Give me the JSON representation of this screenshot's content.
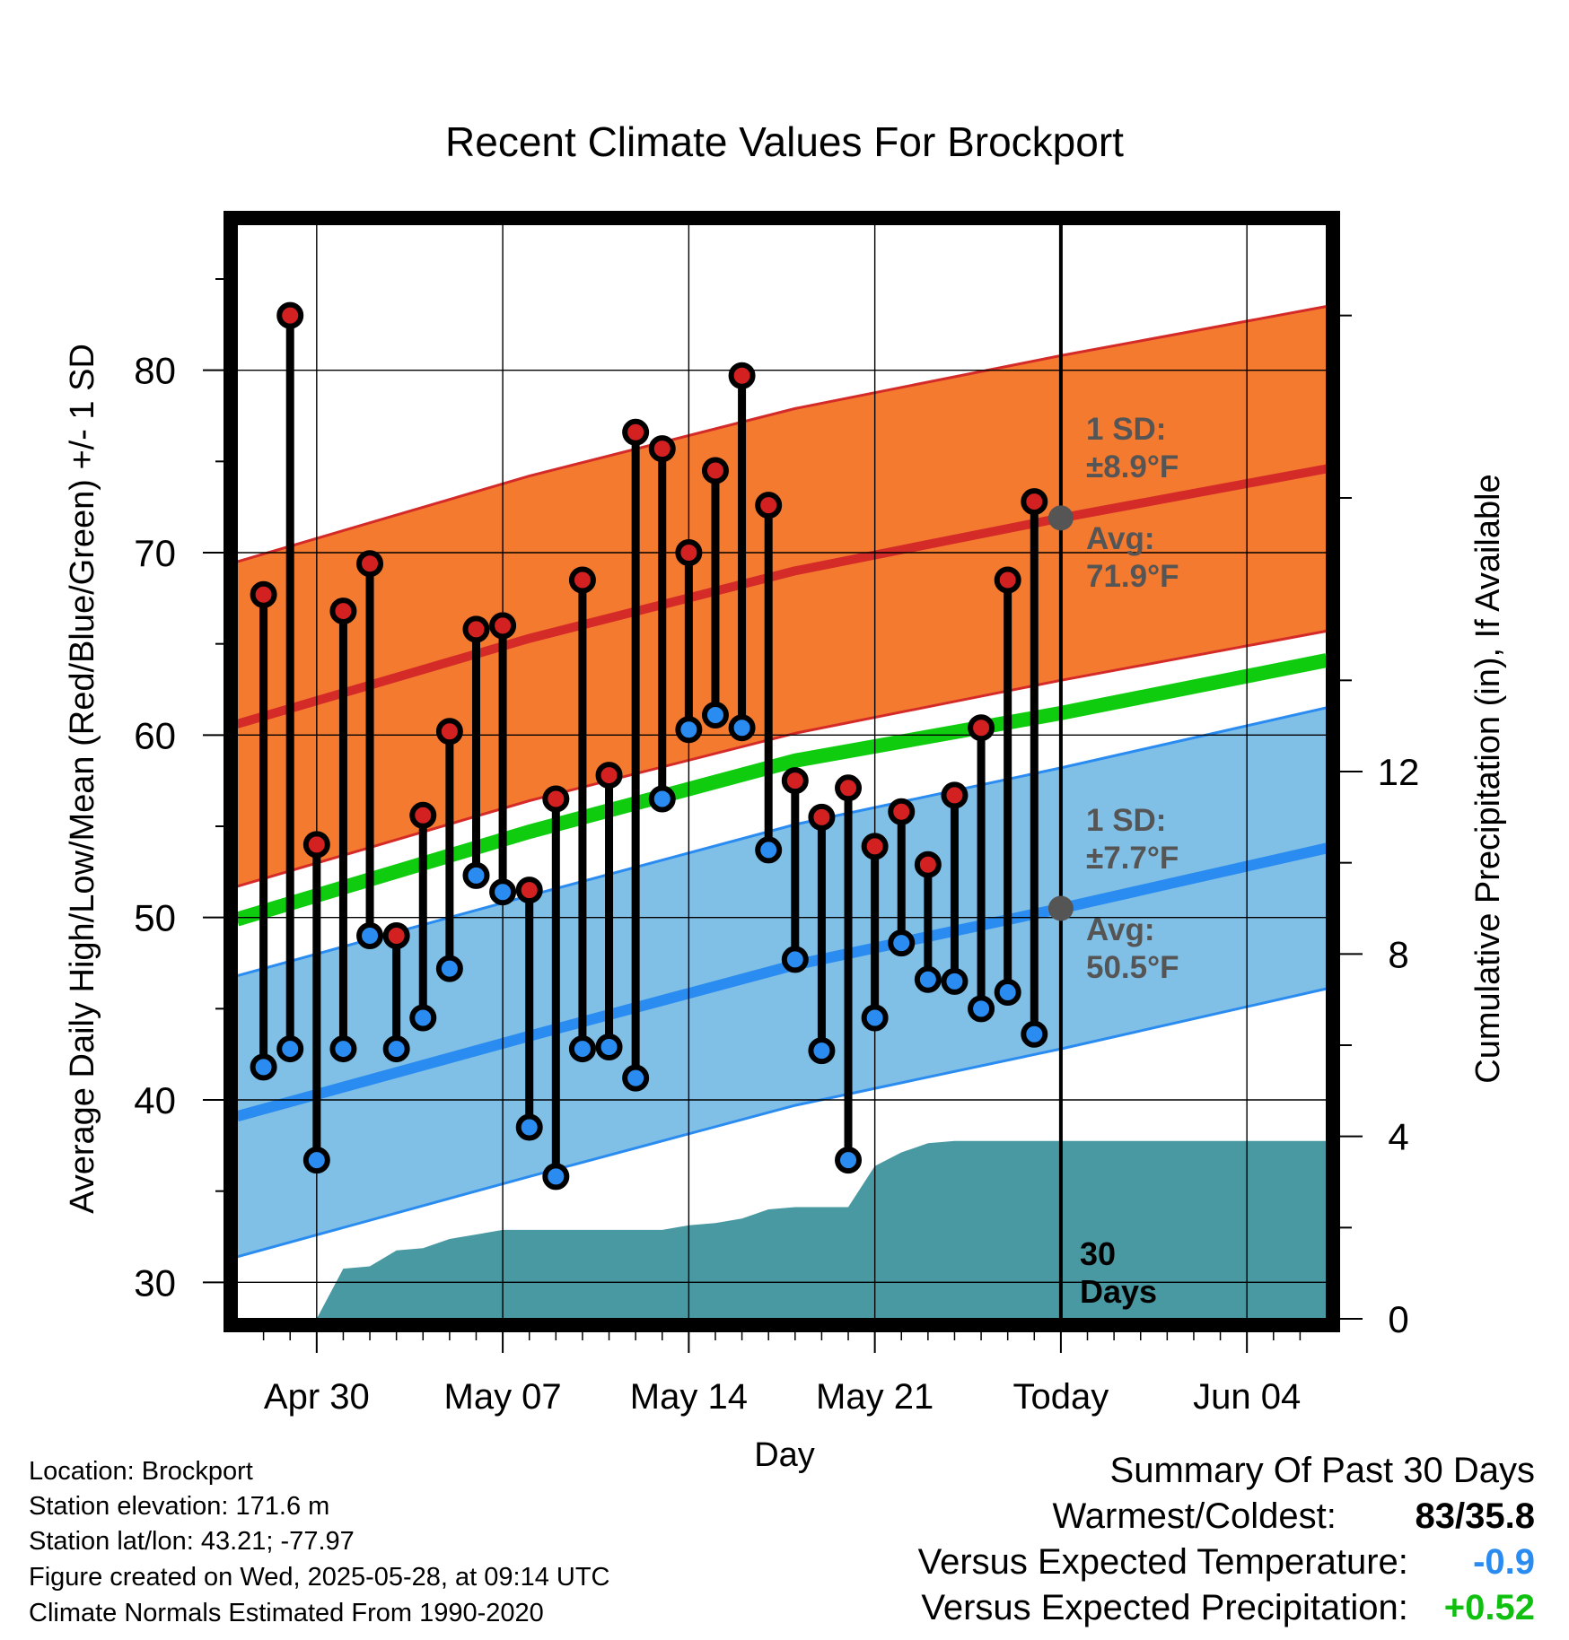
{
  "chart_data": {
    "type": "line",
    "title": "Recent Climate Values For Brockport",
    "xlabel": "Day",
    "ylabel": "Average Daily High/Low/Mean (Red/Blue/Green) +/- 1 SD",
    "y2label": "Cumulative Precipitation (in), If Available",
    "ylim": [
      28,
      88
    ],
    "y2lim": [
      0,
      24
    ],
    "yticks": [
      30,
      40,
      50,
      60,
      70,
      80
    ],
    "y2ticks": [
      0,
      4,
      8,
      12
    ],
    "xticks": [
      {
        "date": "2025-04-30",
        "label": "Apr 30"
      },
      {
        "date": "2025-05-07",
        "label": "May 07"
      },
      {
        "date": "2025-05-14",
        "label": "May 14"
      },
      {
        "date": "2025-05-21",
        "label": "May 21"
      },
      {
        "date": "2025-05-28",
        "label": "Today"
      },
      {
        "date": "2025-06-04",
        "label": "Jun 04"
      }
    ],
    "xlim": [
      "2025-04-27",
      "2025-06-07"
    ],
    "grid": true,
    "daily": {
      "dates": [
        "2025-04-28",
        "2025-04-29",
        "2025-04-30",
        "2025-05-01",
        "2025-05-02",
        "2025-05-03",
        "2025-05-04",
        "2025-05-05",
        "2025-05-06",
        "2025-05-07",
        "2025-05-08",
        "2025-05-09",
        "2025-05-10",
        "2025-05-11",
        "2025-05-12",
        "2025-05-13",
        "2025-05-14",
        "2025-05-15",
        "2025-05-16",
        "2025-05-17",
        "2025-05-18",
        "2025-05-19",
        "2025-05-20",
        "2025-05-21",
        "2025-05-22",
        "2025-05-23",
        "2025-05-24",
        "2025-05-25",
        "2025-05-26",
        "2025-05-27"
      ],
      "high": [
        67.7,
        83,
        54,
        66.8,
        69.4,
        49,
        55.6,
        60.2,
        65.8,
        66,
        51.5,
        56.5,
        68.5,
        57.8,
        76.6,
        75.7,
        70,
        74.5,
        79.7,
        72.6,
        57.5,
        55.5,
        57.1,
        53.9,
        55.8,
        52.9,
        56.7,
        60.4,
        68.5,
        72.8
      ],
      "low": [
        41.8,
        42.8,
        36.7,
        42.8,
        49,
        42.8,
        44.5,
        47.2,
        52.3,
        51.4,
        38.5,
        35.8,
        42.8,
        42.9,
        41.2,
        56.5,
        60.3,
        61.1,
        60.4,
        53.7,
        47.7,
        42.7,
        36.7,
        44.5,
        48.6,
        46.6,
        46.5,
        45,
        45.9,
        43.6
      ]
    },
    "normals": {
      "dates": [
        "2025-04-27",
        "2025-05-08",
        "2025-05-18",
        "2025-05-28",
        "2025-06-07"
      ],
      "avg_high": [
        60.6,
        65.3,
        69.0,
        71.9,
        74.6
      ],
      "high_sd": 8.9,
      "avg_low": [
        39.1,
        43.5,
        47.4,
        50.5,
        53.8
      ],
      "low_sd": 7.7,
      "avg_mean": [
        49.9,
        54.7,
        58.6,
        61.2,
        64.1
      ]
    },
    "precip": {
      "dates": [
        "2025-04-30",
        "2025-05-01",
        "2025-05-02",
        "2025-05-03",
        "2025-05-04",
        "2025-05-05",
        "2025-05-06",
        "2025-05-07",
        "2025-05-08",
        "2025-05-09",
        "2025-05-10",
        "2025-05-11",
        "2025-05-12",
        "2025-05-13",
        "2025-05-14",
        "2025-05-15",
        "2025-05-16",
        "2025-05-17",
        "2025-05-18",
        "2025-05-19",
        "2025-05-20",
        "2025-05-21",
        "2025-05-22",
        "2025-05-23",
        "2025-05-24",
        "2025-05-25",
        "2025-06-07"
      ],
      "cumulative": [
        0,
        1.1,
        1.15,
        1.5,
        1.55,
        1.75,
        1.85,
        1.95,
        1.95,
        1.95,
        1.95,
        1.95,
        1.95,
        1.95,
        2.05,
        2.1,
        2.2,
        2.4,
        2.45,
        2.45,
        2.45,
        3.35,
        3.65,
        3.85,
        3.9,
        3.9,
        3.9
      ]
    },
    "annotations": {
      "high_sd_line1": "1 SD:",
      "high_sd_line2": "±8.9°F",
      "high_avg_line1": "Avg:",
      "high_avg_line2": "71.9°F",
      "low_sd_line1": "1 SD:",
      "low_sd_line2": "±7.7°F",
      "low_avg_line1": "Avg:",
      "low_avg_line2": "50.5°F",
      "days_line1": "30",
      "days_line2": "Days"
    },
    "colors": {
      "high_band": "#f47a30",
      "high_line": "#d42a28",
      "low_band": "#80bfe6",
      "low_line": "#2a8cf0",
      "mean_line": "#0fcc0f",
      "precip": "#4899a2",
      "annotation": "#555555",
      "high_dot": "#d32020",
      "low_dot": "#2a8cf0"
    }
  },
  "info": {
    "location": "Location: Brockport",
    "elevation": "Station elevation: 171.6 m",
    "latlon": "Station lat/lon: 43.21; -77.97",
    "created": "Figure created on Wed, 2025-05-28, at 09:14 UTC",
    "normals": "Climate Normals Estimated From 1990-2020"
  },
  "summary": {
    "title": "Summary Of Past 30 Days",
    "warm_cold_label": "Warmest/Coldest:",
    "warm_cold_value": "83/35.8",
    "temp_label": "Versus Expected Temperature:",
    "temp_value": "-0.9",
    "temp_color": "#2a8cf0",
    "precip_label": "Versus Expected Precipitation:",
    "precip_value": "+0.52",
    "precip_color": "#10c010"
  }
}
